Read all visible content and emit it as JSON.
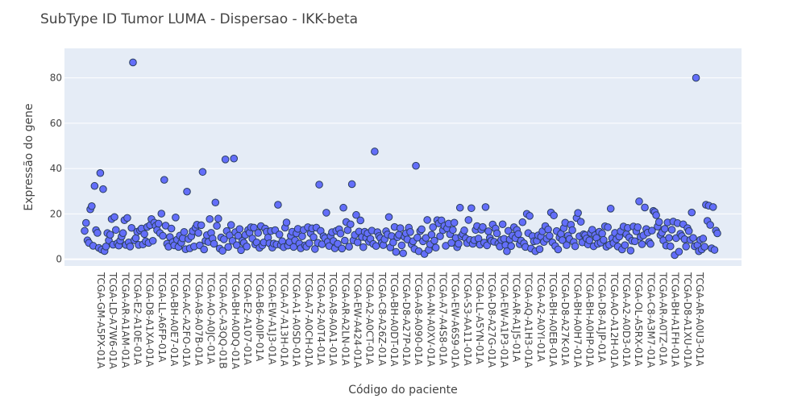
{
  "chart_data": {
    "type": "scatter",
    "title": "SubType ID Tumor LUMA - Dispersao - IKK-beta",
    "xlabel": "Código do paciente",
    "ylabel": "Expressão do gene",
    "ylim": [
      -3,
      93
    ],
    "yticks": [
      0,
      20,
      40,
      60,
      80
    ],
    "grid": true,
    "legend": "none",
    "x_tick_labels": [
      "TCGA-GM-A5PX-01A",
      "TCGA-LD-A7W6-01A",
      "TCGA-AR-A1AM-01A",
      "TCGA-E2-A10E-01A",
      "TCGA-D8-A1XA-01A",
      "TCGA-LL-A6FP-01A",
      "TCGA-BH-A0E7-01A",
      "TCGA-AC-A2FO-01A",
      "TCGA-A8-A07B-01A",
      "TCGA-AO-A0JC-01A",
      "TCGA-AC-A3QQ-01B",
      "TCGA-BH-A0DQ-01A",
      "TCGA-E2-A107-01A",
      "TCGA-B6-A0IP-01A",
      "TCGA-EW-A1J3-01A",
      "TCGA-A7-A13H-01A",
      "TCGA-A1-A0SD-01A",
      "TCGA-A7-A0CH-01A",
      "TCGA-A2-A0T4-01A",
      "TCGA-A8-A0A1-01A",
      "TCGA-AR-A2LN-01A",
      "TCGA-EW-A424-01A",
      "TCGA-A2-A0CT-01A",
      "TCGA-C8-A26Z-01A",
      "TCGA-BH-A0DT-01A",
      "TCGA-D8-A27P-01A",
      "TCGA-A8-A090-01A",
      "TCGA-AN-A0XV-01A",
      "TCGA-A7-A4S8-01A",
      "TCGA-EW-A6S9-01A",
      "TCGA-S3-AA11-01A",
      "TCGA-LL-A5YN-01A",
      "TCGA-D8-A27G-01A",
      "TCGA-EW-A1P3-01A",
      "TCGA-AR-A1J5-01A",
      "TCGA-AQ-A1H3-01A",
      "TCGA-A2-A0YI-01A",
      "TCGA-BH-A0EB-01A",
      "TCGA-D8-A27K-01A",
      "TCGA-BH-A0H7-01A",
      "TCGA-BH-A0HP-01A",
      "TCGA-D8-A1JP-01A",
      "TCGA-AO-A12H-01A",
      "TCGA-A2-A0D3-01A",
      "TCGA-OL-A5RX-01A",
      "TCGA-C8-A3M7-01A",
      "TCGA-AR-A0TZ-01A",
      "TCGA-BH-A1FH-01A",
      "TCGA-D8-A1XU-01A",
      "TCGA-AR-A0U3-01A"
    ],
    "values": [
      12.5,
      16,
      8.3,
      7.2,
      22,
      23.4,
      5.9,
      32.3,
      12.8,
      11.6,
      5,
      38,
      4.2,
      30.9,
      3.6,
      5.6,
      11.5,
      8.3,
      10.8,
      17.7,
      6.4,
      18.6,
      12.9,
      7,
      6,
      8.2,
      10,
      11.5,
      17.2,
      6.3,
      18.2,
      7.4,
      5.6,
      13.8,
      86.8,
      8.4,
      9.3,
      12.1,
      6.3,
      12.7,
      13.5,
      6.5,
      11.1,
      7.9,
      14.2,
      7.2,
      15,
      17.7,
      8.1,
      16.1,
      14.7,
      12.8,
      15.7,
      11.5,
      20.1,
      10.3,
      35,
      14.8,
      6.8,
      5.5,
      9.8,
      13.5,
      7.5,
      6.1,
      18.4,
      8.6,
      5.4,
      10.4,
      7.3,
      9.2,
      12,
      4.4,
      29.8,
      8.9,
      4.8,
      10.1,
      12.4,
      5.6,
      13.9,
      15.2,
      11.6,
      6.1,
      15,
      38.5,
      4.3,
      8.1,
      10.6,
      7.6,
      17.7,
      11.6,
      9.1,
      6.8,
      25,
      14.7,
      17.9,
      4.7,
      9.6,
      3.7,
      8.8,
      44,
      12.4,
      5.4,
      10.5,
      15.1,
      8.1,
      44.4,
      11.9,
      6.2,
      10.3,
      13.3,
      4,
      8.1,
      7.2,
      10.7,
      5.6,
      12.9,
      11.7,
      14.1,
      9.1,
      13.9,
      6.5,
      7.4,
      11.6,
      5,
      14.6,
      6.1,
      7.4,
      13.5,
      12.1,
      9.5,
      7,
      12.4,
      5.1,
      6.9,
      12.8,
      6.5,
      24,
      10.9,
      6.2,
      7.9,
      5.3,
      13.9,
      16.2,
      6,
      7.6,
      10.3,
      12.1,
      5.4,
      8.3,
      11.4,
      13.4,
      6.9,
      4.8,
      10.1,
      12.9,
      6.1,
      5.5,
      14.1,
      7,
      11.4,
      13.6,
      9.7,
      4.5,
      13.9,
      7.2,
      32.9,
      12.5,
      6.6,
      10.1,
      9.3,
      20.5,
      7.7,
      5.8,
      10.2,
      11.9,
      8,
      4.8,
      12.5,
      6.8,
      13.2,
      11.3,
      4.7,
      22.7,
      8.2,
      16.4,
      12.8,
      5.5,
      15.4,
      33.1,
      8.3,
      10.7,
      19.5,
      7.4,
      12.2,
      17.1,
      9.8,
      5.3,
      12.1,
      9.4,
      11.4,
      7.7,
      9,
      12.6,
      6.7,
      47.5,
      5.8,
      11.9,
      10.2,
      9.3,
      7.2,
      6.2,
      8.8,
      12.3,
      10.9,
      18.6,
      5.2,
      10.2,
      7.4,
      14.2,
      3.2,
      9.7,
      10.8,
      13.7,
      6.1,
      2.6,
      9.8,
      11.4,
      8.7,
      13.9,
      12,
      6.5,
      7.9,
      4.5,
      41.2,
      9.5,
      3.5,
      12.4,
      13.2,
      7.9,
      2.3,
      9.4,
      17.3,
      4.1,
      6.6,
      10.8,
      14.1,
      8.2,
      5.1,
      17.2,
      15.8,
      10.1,
      17.1,
      12.8,
      14.7,
      5.9,
      13.6,
      15.7,
      11,
      7.2,
      12.9,
      16.1,
      9.4,
      5.3,
      6.8,
      22.7,
      10.1,
      11.1,
      12.7,
      9.2,
      7.1,
      17.3,
      8.5,
      22.5,
      6.8,
      8.4,
      12.9,
      14.6,
      9.1,
      6.4,
      13,
      14.2,
      7.3,
      23,
      6.1,
      12.3,
      9.4,
      8.1,
      15.3,
      7.7,
      13.5,
      11.4,
      6.9,
      5.6,
      8.5,
      15.4,
      9,
      6.2,
      3.5,
      12.5,
      8.7,
      5.8,
      10.4,
      14.1,
      9.3,
      12.9,
      11.1,
      6.6,
      8.2,
      16.3,
      7,
      5.4,
      20,
      11.5,
      19.1,
      4.7,
      10.2,
      7.9,
      3.5,
      8.1,
      10.5,
      4.4,
      9.9,
      12.3,
      7.6,
      14.6,
      9.1,
      13.1,
      10.3,
      20.6,
      7.4,
      19.3,
      5.8,
      12.4,
      4.3,
      9.6,
      11.2,
      8.4,
      13.7,
      16.1,
      6.2,
      10.4,
      8.9,
      15.2,
      12.8,
      7.6,
      5.7,
      18.2,
      20.4,
      10.1,
      16.5,
      7.4,
      11,
      10.6,
      9.1,
      6.5,
      8.3,
      11.6,
      13,
      5.7,
      10.6,
      9.4,
      6.8,
      12.1,
      7.3,
      11.3,
      8.5,
      14.5,
      5.5,
      14.1,
      6.3,
      22.3,
      9.2,
      7.1,
      11.6,
      8.8,
      5.6,
      10,
      12.3,
      4.3,
      14.4,
      6.2,
      11,
      13.8,
      9.6,
      3.8,
      8.1,
      14.4,
      7.9,
      12.3,
      14.1,
      25.5,
      9.8,
      6.6,
      10.5,
      22.8,
      13.3,
      11.7,
      7.6,
      6.7,
      12.6,
      21.3,
      20.8,
      19.4,
      14.4,
      16.4,
      10.6,
      11.7,
      8.3,
      13.4,
      6,
      16.2,
      9.4,
      5.7,
      13,
      16.6,
      1.8,
      9.3,
      15.9,
      3.3,
      11.2,
      10.2,
      15.4,
      8.8,
      5.6,
      13.7,
      12.4,
      8.5,
      20.6,
      9.4,
      5.7,
      80,
      6.2,
      3.5,
      8.5,
      4.3,
      9.1,
      5.5,
      24,
      16.9,
      23.6,
      15.1,
      4.8,
      23,
      4.1,
      12.6,
      11.4
    ]
  }
}
